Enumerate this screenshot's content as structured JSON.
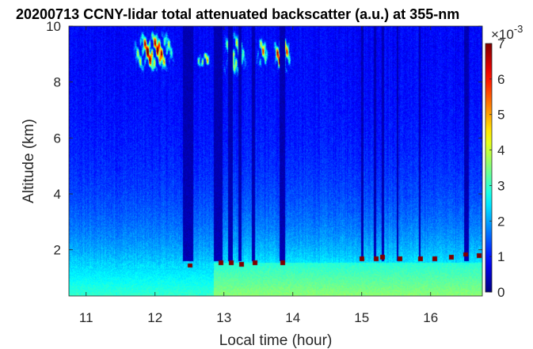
{
  "chart_data": {
    "type": "heatmap",
    "title": "20200713 CCNY-lidar total attenuated backscatter (a.u.) at 355-nm",
    "xlabel": "Local time (hour)",
    "ylabel": "Altitude (km)",
    "xlim": [
      10.75,
      16.75
    ],
    "ylim": [
      0.35,
      10
    ],
    "x_ticks": [
      {
        "value": 11,
        "label": "11"
      },
      {
        "value": 12,
        "label": "12"
      },
      {
        "value": 13,
        "label": "13"
      },
      {
        "value": 14,
        "label": "14"
      },
      {
        "value": 15,
        "label": "15"
      },
      {
        "value": 16,
        "label": "16"
      }
    ],
    "y_ticks": [
      {
        "value": 2,
        "label": "2"
      },
      {
        "value": 4,
        "label": "4"
      },
      {
        "value": 6,
        "label": "6"
      },
      {
        "value": 8,
        "label": "8"
      },
      {
        "value": 10,
        "label": "10"
      }
    ],
    "colorbar": {
      "colormap": "jet",
      "range": [
        0,
        7
      ],
      "scale_label": "×10",
      "scale_exponent": "-3",
      "ticks": [
        {
          "value": 0,
          "label": "0"
        },
        {
          "value": 1,
          "label": "1"
        },
        {
          "value": 2,
          "label": "2"
        },
        {
          "value": 3,
          "label": "3"
        },
        {
          "value": 4,
          "label": "4"
        },
        {
          "value": 5,
          "label": "5"
        },
        {
          "value": 6,
          "label": "6"
        },
        {
          "value": 7,
          "label": "7"
        }
      ]
    },
    "features": {
      "boundary_layer": [
        {
          "x": [
            10.75,
            12.85
          ],
          "top_km": 1.35,
          "surface_value": 3.0
        },
        {
          "x": [
            12.85,
            16.75
          ],
          "top_km": 1.55,
          "surface_value": 3.6
        }
      ],
      "cirrus_clouds": [
        {
          "x": [
            11.65,
            12.3
          ],
          "alt_km": [
            8.3,
            9.9
          ],
          "peak_value": 7
        },
        {
          "x": [
            12.6,
            12.8
          ],
          "alt_km": [
            8.5,
            9.1
          ],
          "peak_value": 7
        },
        {
          "x": [
            12.95,
            13.35
          ],
          "alt_km": [
            8.1,
            9.9
          ],
          "peak_value": 5
        },
        {
          "x": [
            13.45,
            13.65
          ],
          "alt_km": [
            8.4,
            9.7
          ],
          "peak_value": 5
        },
        {
          "x": [
            13.7,
            13.98
          ],
          "alt_km": [
            8.2,
            9.7
          ],
          "peak_value": 7
        }
      ],
      "low_cloud_tops": [
        {
          "x": 12.5,
          "alt_km": 1.45,
          "value": 7
        },
        {
          "x": 12.95,
          "alt_km": 1.55,
          "value": 7
        },
        {
          "x": 13.1,
          "alt_km": 1.55,
          "value": 7
        },
        {
          "x": 13.25,
          "alt_km": 1.5,
          "value": 7
        },
        {
          "x": 13.45,
          "alt_km": 1.55,
          "value": 7
        },
        {
          "x": 13.85,
          "alt_km": 1.55,
          "value": 7
        },
        {
          "x": 15.0,
          "alt_km": 1.7,
          "value": 7
        },
        {
          "x": 15.2,
          "alt_km": 1.7,
          "value": 7
        },
        {
          "x": 15.3,
          "alt_km": 1.75,
          "value": 7
        },
        {
          "x": 15.55,
          "alt_km": 1.7,
          "value": 7
        },
        {
          "x": 15.85,
          "alt_km": 1.7,
          "value": 7
        },
        {
          "x": 16.05,
          "alt_km": 1.7,
          "value": 7
        },
        {
          "x": 16.3,
          "alt_km": 1.75,
          "value": 7
        },
        {
          "x": 16.5,
          "alt_km": 1.85,
          "value": 7
        },
        {
          "x": 16.7,
          "alt_km": 1.8,
          "value": 7
        }
      ],
      "signal_dropouts": [
        {
          "x": [
            12.4,
            12.55
          ]
        },
        {
          "x": [
            12.85,
            12.97
          ]
        },
        {
          "x": [
            13.05,
            13.12
          ]
        },
        {
          "x": [
            13.2,
            13.25
          ]
        },
        {
          "x": [
            13.4,
            13.45
          ]
        },
        {
          "x": [
            13.8,
            13.88
          ]
        },
        {
          "x": [
            14.98,
            15.02
          ]
        },
        {
          "x": [
            15.17,
            15.2
          ]
        },
        {
          "x": [
            15.28,
            15.32
          ]
        },
        {
          "x": [
            15.5,
            15.53
          ]
        },
        {
          "x": [
            15.82,
            15.85
          ]
        },
        {
          "x": [
            16.48,
            16.55
          ]
        }
      ]
    }
  }
}
